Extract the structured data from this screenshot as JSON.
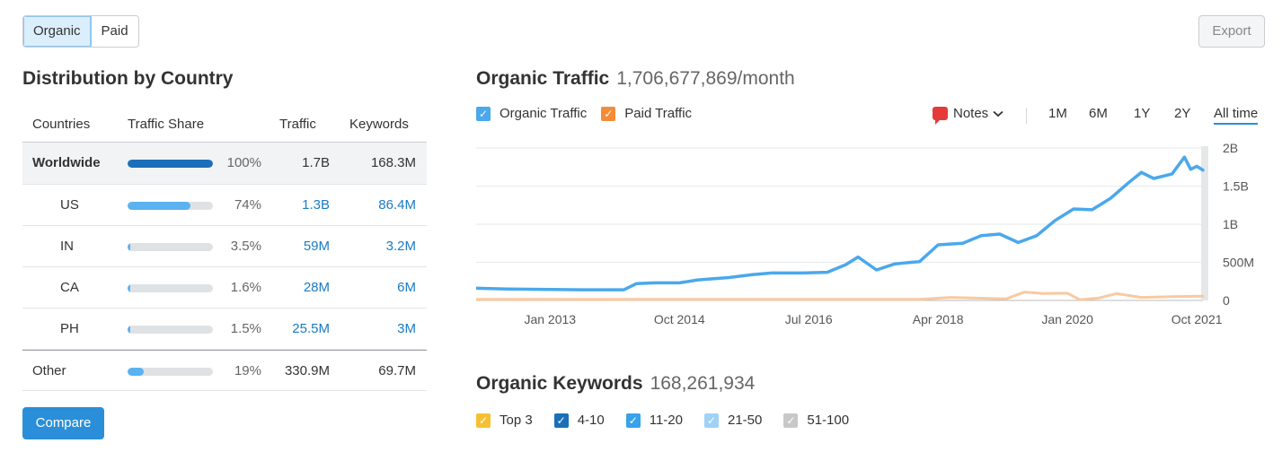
{
  "toggle": {
    "organic": "Organic",
    "paid": "Paid"
  },
  "export_label": "Export",
  "distribution": {
    "title": "Distribution by Country",
    "headers": {
      "countries": "Countries",
      "share": "Traffic Share",
      "traffic": "Traffic",
      "keywords": "Keywords"
    },
    "rows": [
      {
        "country": "Worldwide",
        "pct": "100%",
        "share": 1.0,
        "traffic": "1.7B",
        "keywords": "168.3M"
      },
      {
        "country": "US",
        "pct": "74%",
        "share": 0.74,
        "traffic": "1.3B",
        "keywords": "86.4M"
      },
      {
        "country": "IN",
        "pct": "3.5%",
        "share": 0.035,
        "traffic": "59M",
        "keywords": "3.2M"
      },
      {
        "country": "CA",
        "pct": "1.6%",
        "share": 0.016,
        "traffic": "28M",
        "keywords": "6M"
      },
      {
        "country": "PH",
        "pct": "1.5%",
        "share": 0.015,
        "traffic": "25.5M",
        "keywords": "3M"
      },
      {
        "country": "Other",
        "pct": "19%",
        "share": 0.19,
        "traffic": "330.9M",
        "keywords": "69.7M"
      }
    ],
    "compare_label": "Compare"
  },
  "organic_traffic": {
    "title": "Organic Traffic",
    "value": "1,706,677,869/month",
    "legend": {
      "organic": "Organic Traffic",
      "paid": "Paid Traffic"
    },
    "notes_label": "Notes",
    "periods": [
      "1M",
      "6M",
      "1Y",
      "2Y",
      "All time"
    ],
    "active_period": "All time"
  },
  "organic_keywords": {
    "title": "Organic Keywords",
    "value": "168,261,934",
    "legend": [
      "Top 3",
      "4-10",
      "11-20",
      "21-50",
      "51-100"
    ]
  },
  "colors": {
    "accent": "#2a8fd8",
    "organic_line": "#4aa8ec",
    "paid_line": "#f9c9a0",
    "worldwide_bar": "#1a6fb8",
    "country_bar": "#5bb2f0",
    "link": "#1a7bc4",
    "legend_top3": "#f5c033",
    "legend_4_10": "#1a6fb8",
    "legend_11_20": "#38a2ea",
    "legend_21_50": "#9fd2f6",
    "legend_51_100": "#c8c8c8",
    "paid_checkbox": "#f28c38"
  },
  "chart_data": {
    "type": "line",
    "x_ticks": [
      "Jan 2013",
      "Oct 2014",
      "Jul 2016",
      "Apr 2018",
      "Jan 2020",
      "Oct 2021"
    ],
    "y_ticks": [
      "2B",
      "1.5B",
      "1B",
      "500M",
      "0"
    ],
    "ylim": [
      0,
      2000000000
    ],
    "series": [
      {
        "name": "Organic Traffic",
        "x": [
          "2012-01",
          "2012-06",
          "2013-01",
          "2013-06",
          "2014-01",
          "2014-03",
          "2014-06",
          "2014-10",
          "2015-01",
          "2015-06",
          "2015-10",
          "2016-01",
          "2016-06",
          "2016-10",
          "2017-01",
          "2017-03",
          "2017-06",
          "2017-09",
          "2018-01",
          "2018-04",
          "2018-08",
          "2018-11",
          "2019-02",
          "2019-05",
          "2019-08",
          "2019-11",
          "2020-02",
          "2020-05",
          "2020-08",
          "2020-11",
          "2021-01",
          "2021-03",
          "2021-06",
          "2021-08",
          "2021-09",
          "2021-10",
          "2021-11"
        ],
        "values": [
          160000000,
          150000000,
          145000000,
          140000000,
          140000000,
          220000000,
          230000000,
          230000000,
          270000000,
          300000000,
          340000000,
          360000000,
          360000000,
          370000000,
          470000000,
          570000000,
          400000000,
          480000000,
          510000000,
          730000000,
          750000000,
          850000000,
          870000000,
          760000000,
          850000000,
          1050000000,
          1200000000,
          1190000000,
          1340000000,
          1550000000,
          1680000000,
          1600000000,
          1660000000,
          1880000000,
          1720000000,
          1760000000,
          1710000000
        ]
      },
      {
        "name": "Paid Traffic",
        "x": [
          "2012-01",
          "2014-01",
          "2016-01",
          "2018-01",
          "2018-06",
          "2019-03",
          "2019-06",
          "2019-09",
          "2020-01",
          "2020-03",
          "2020-06",
          "2020-09",
          "2021-01",
          "2021-06",
          "2021-11"
        ],
        "values": [
          15000000,
          15000000,
          15000000,
          15000000,
          40000000,
          20000000,
          110000000,
          90000000,
          95000000,
          10000000,
          30000000,
          90000000,
          40000000,
          50000000,
          55000000
        ]
      }
    ]
  }
}
